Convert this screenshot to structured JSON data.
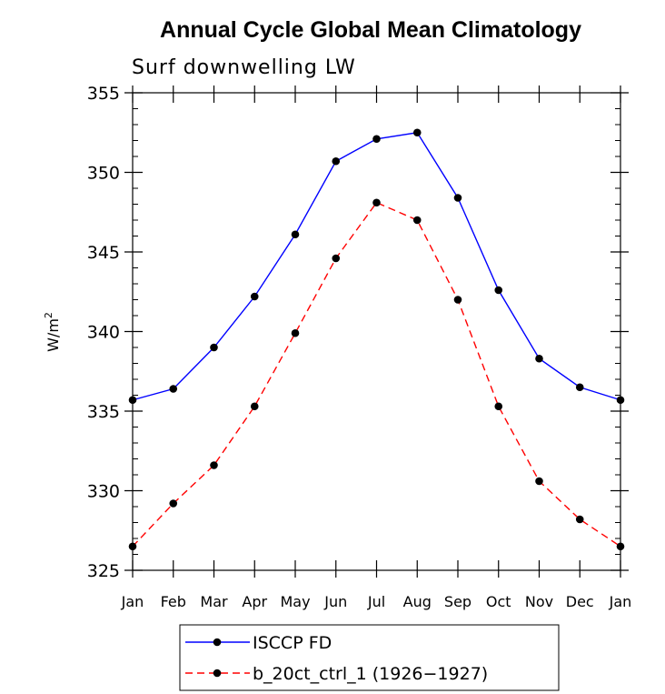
{
  "chart_data": {
    "type": "line",
    "title": "Annual Cycle Global Mean Climatology",
    "subtitle": "Surf downwelling LW",
    "ylabel_base": "W/m",
    "ylabel_sup": "2",
    "xlabel": "",
    "categories": [
      "Jan",
      "Feb",
      "Mar",
      "Apr",
      "May",
      "Jun",
      "Jul",
      "Aug",
      "Sep",
      "Oct",
      "Nov",
      "Dec",
      "Jan"
    ],
    "ylim": [
      325,
      355
    ],
    "yticks": [
      325,
      330,
      335,
      340,
      345,
      350,
      355
    ],
    "legend_position": "bottom",
    "series": [
      {
        "name": "ISCCP FD",
        "color": "#0000ff",
        "dash": "solid",
        "values": [
          335.7,
          336.4,
          339.0,
          342.2,
          346.1,
          350.7,
          352.1,
          352.5,
          348.4,
          342.6,
          338.3,
          336.5,
          335.7
        ]
      },
      {
        "name": "b_20ct_ctrl_1 (1926−1927)",
        "color": "#ff0000",
        "dash": "dashed",
        "values": [
          326.5,
          329.2,
          331.6,
          335.3,
          339.9,
          344.6,
          348.1,
          347.0,
          342.0,
          335.3,
          330.6,
          328.2,
          326.5
        ]
      }
    ]
  }
}
